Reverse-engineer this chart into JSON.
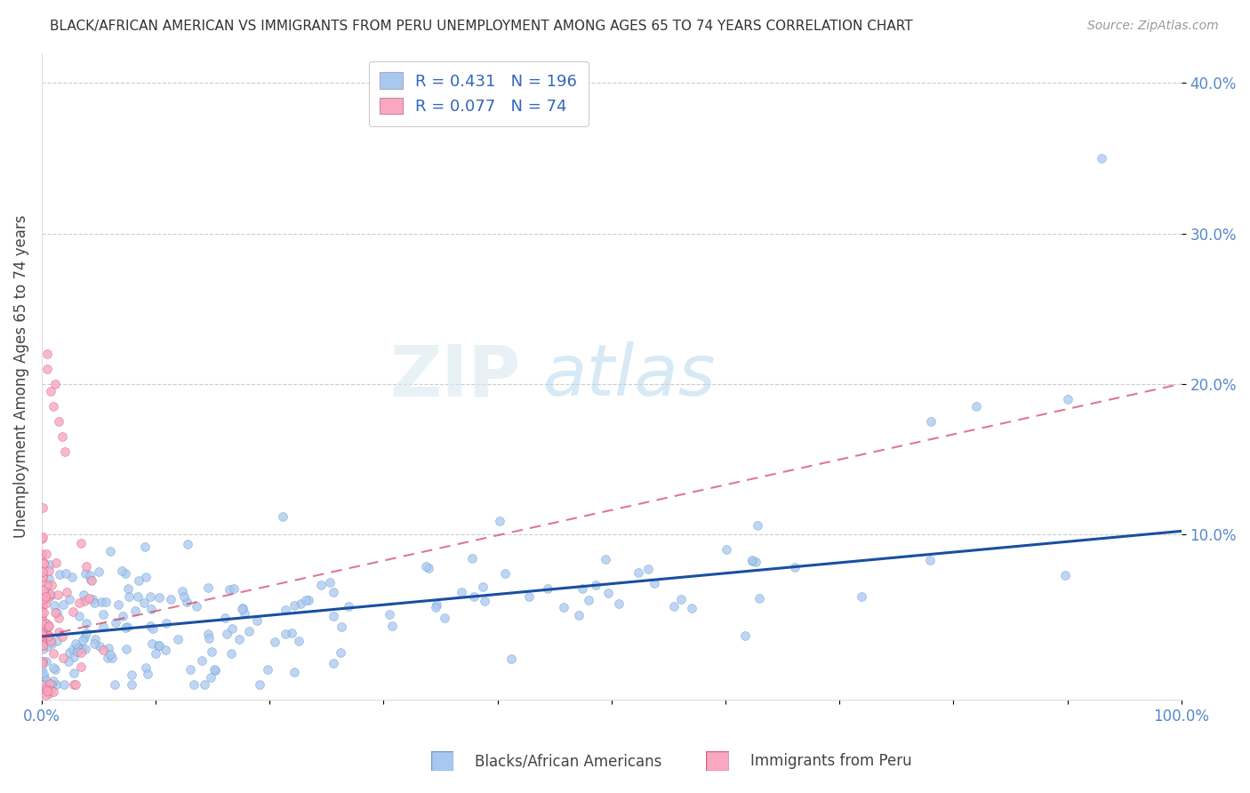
{
  "title": "BLACK/AFRICAN AMERICAN VS IMMIGRANTS FROM PERU UNEMPLOYMENT AMONG AGES 65 TO 74 YEARS CORRELATION CHART",
  "source": "Source: ZipAtlas.com",
  "ylabel": "Unemployment Among Ages 65 to 74 years",
  "xlim": [
    0.0,
    1.0
  ],
  "ylim": [
    -0.01,
    0.42
  ],
  "xticks": [
    0.0,
    0.1,
    0.2,
    0.3,
    0.4,
    0.5,
    0.6,
    0.7,
    0.8,
    0.9,
    1.0
  ],
  "xticklabels": [
    "0.0%",
    "",
    "",
    "",
    "",
    "",
    "",
    "",
    "",
    "",
    "100.0%"
  ],
  "yticks": [
    0.1,
    0.2,
    0.3,
    0.4
  ],
  "yticklabels": [
    "10.0%",
    "20.0%",
    "30.0%",
    "40.0%"
  ],
  "blue_color": "#a8c8f0",
  "blue_edge": "#6699cc",
  "pink_color": "#f8a8c0",
  "pink_edge": "#d46080",
  "trend_blue": "#1a4fa0",
  "trend_pink": "#d04060",
  "legend_R_blue": "0.431",
  "legend_N_blue": "196",
  "legend_R_pink": "0.077",
  "legend_N_pink": "74",
  "watermark_zip": "ZIP",
  "watermark_atlas": "atlas",
  "background_color": "#ffffff",
  "grid_color": "#cccccc",
  "ytick_color": "#5588cc",
  "xtick_color": "#5588cc",
  "blue_trend_x": [
    0.0,
    1.0
  ],
  "blue_trend_y": [
    0.032,
    0.102
  ],
  "pink_trend_x": [
    0.0,
    1.0
  ],
  "pink_trend_y": [
    0.032,
    0.2
  ]
}
